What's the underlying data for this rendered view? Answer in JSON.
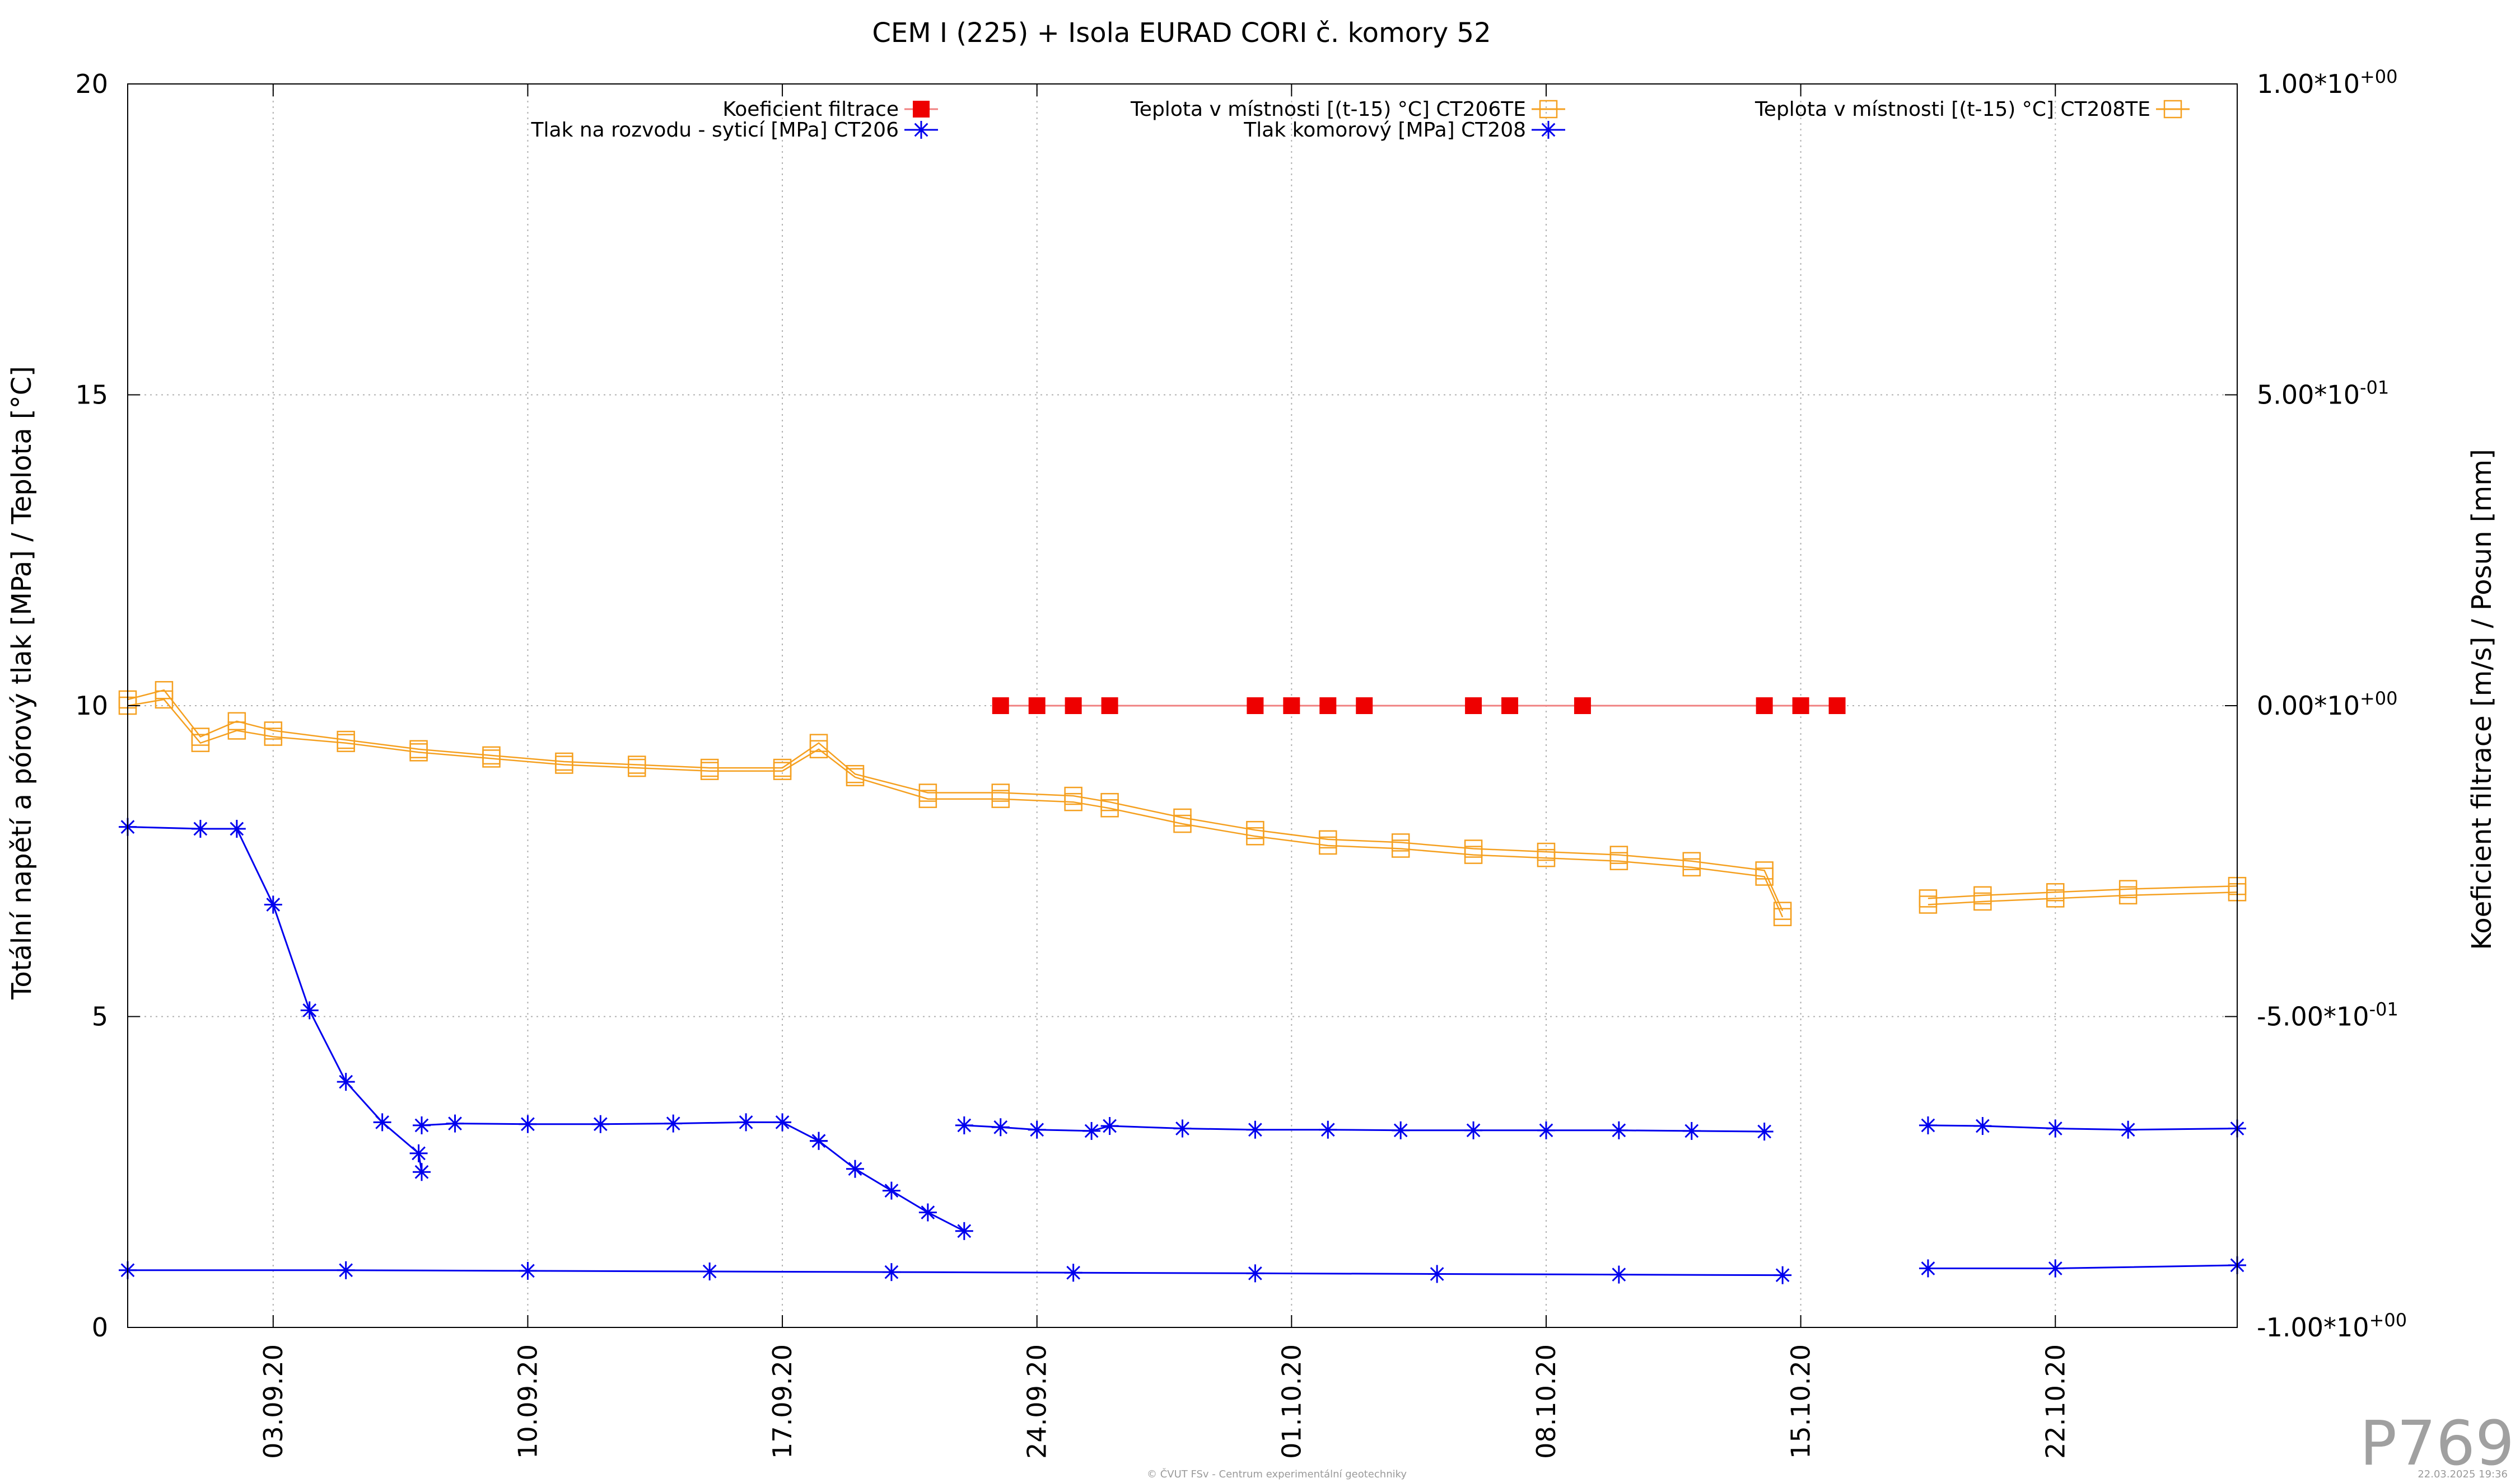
{
  "chart_data": {
    "type": "line",
    "title": "CEM I (225) + Isola EURAD CORI č. komory 52",
    "ylabel_left": "Totální napětí a pórový tlak [MPa] / Teplota [°C]",
    "ylabel_right": "Koeficient filtrace [m/s] / Posun [mm]",
    "ylim_left": [
      0,
      20
    ],
    "yticks_left": [
      "0",
      "5",
      "10",
      "15",
      "20"
    ],
    "ylim_right": [
      -1,
      1
    ],
    "yticks_right": [
      {
        "value": -1,
        "mantissa": "-1.00*10",
        "exp": "+00"
      },
      {
        "value": -0.5,
        "mantissa": "-5.00*10",
        "exp": "-01"
      },
      {
        "value": 0,
        "mantissa": "0.00*10",
        "exp": "+00"
      },
      {
        "value": 0.5,
        "mantissa": "5.00*10",
        "exp": "-01"
      },
      {
        "value": 1,
        "mantissa": "1.00*10",
        "exp": "+00"
      }
    ],
    "x_range": [
      "2020-08-30",
      "2020-10-27"
    ],
    "x_ticks": [
      {
        "date": "2020-09-03",
        "label": "03.09.20"
      },
      {
        "date": "2020-09-10",
        "label": "10.09.20"
      },
      {
        "date": "2020-09-17",
        "label": "17.09.20"
      },
      {
        "date": "2020-09-24",
        "label": "24.09.20"
      },
      {
        "date": "2020-10-01",
        "label": "01.10.20"
      },
      {
        "date": "2020-10-08",
        "label": "08.10.20"
      },
      {
        "date": "2020-10-15",
        "label": "15.10.20"
      },
      {
        "date": "2020-10-22",
        "label": "22.10.20"
      }
    ],
    "grid": true,
    "legend_position": "top",
    "series": [
      {
        "name": "Koeficient filtrace",
        "axis": "right",
        "color": "#ee0000",
        "marker": "square-filled",
        "x": [
          "2020-09-23",
          "2020-09-24",
          "2020-09-25",
          "2020-09-26",
          "2020-09-30",
          "2020-10-01",
          "2020-10-02",
          "2020-10-03",
          "2020-10-06",
          "2020-10-07",
          "2020-10-09",
          "2020-10-14",
          "2020-10-15",
          "2020-10-16"
        ],
        "y": [
          0,
          0,
          0,
          0,
          0,
          0,
          0,
          0,
          0,
          0,
          0,
          0,
          0,
          0
        ]
      },
      {
        "name": "Tlak na rozvodu - syticí [MPa] CT206",
        "axis": "left",
        "color": "#0000ee",
        "marker": "asterisk",
        "segments": [
          {
            "x": [
              "2020-08-30",
              "2020-09-01",
              "2020-09-02",
              "2020-09-03",
              "2020-09-04",
              "2020-09-05",
              "2020-09-06",
              "2020-09-07",
              "2020-09-07T02:00"
            ],
            "y": [
              8.05,
              8.02,
              8.02,
              6.8,
              5.1,
              3.95,
              3.3,
              2.8,
              2.5
            ]
          },
          {
            "x": [
              "2020-09-07T02:00",
              "2020-09-08",
              "2020-09-10",
              "2020-09-12",
              "2020-09-14",
              "2020-09-16",
              "2020-09-17",
              "2020-09-18"
            ],
            "y": [
              3.25,
              3.28,
              3.27,
              3.27,
              3.28,
              3.3,
              3.3,
              3.0
            ]
          },
          {
            "x": [
              "2020-09-18",
              "2020-09-19",
              "2020-09-20",
              "2020-09-21",
              "2020-09-22"
            ],
            "y": [
              3.0,
              2.55,
              2.2,
              1.85,
              1.55
            ]
          },
          {
            "x": [
              "2020-09-22",
              "2020-09-23",
              "2020-09-24",
              "2020-09-25T12:00",
              "2020-09-26",
              "2020-09-28",
              "2020-09-30",
              "2020-10-02",
              "2020-10-04",
              "2020-10-06",
              "2020-10-08",
              "2020-10-10",
              "2020-10-12",
              "2020-10-14"
            ],
            "y": [
              3.25,
              3.22,
              3.18,
              3.16,
              3.24,
              3.2,
              3.18,
              3.18,
              3.17,
              3.17,
              3.17,
              3.17,
              3.16,
              3.15
            ]
          },
          {
            "x": [
              "2020-10-18T12:00",
              "2020-10-20",
              "2020-10-22",
              "2020-10-24",
              "2020-10-27"
            ],
            "y": [
              3.25,
              3.24,
              3.2,
              3.18,
              3.2
            ]
          }
        ]
      },
      {
        "name": "Teplota v místnosti [(t-15) °C] CT206TE",
        "axis": "left",
        "color": "#f5a020",
        "marker": "square-open",
        "segments": [
          {
            "x": [
              "2020-08-30",
              "2020-08-31",
              "2020-09-01",
              "2020-09-02",
              "2020-09-03",
              "2020-09-05",
              "2020-09-07",
              "2020-09-09",
              "2020-09-11",
              "2020-09-13",
              "2020-09-15",
              "2020-09-17",
              "2020-09-18",
              "2020-09-19",
              "2020-09-21",
              "2020-09-23",
              "2020-09-25",
              "2020-09-26",
              "2020-09-28",
              "2020-09-30",
              "2020-10-02",
              "2020-10-04",
              "2020-10-06",
              "2020-10-08",
              "2020-10-10",
              "2020-10-12",
              "2020-10-14",
              "2020-10-14T12:00"
            ],
            "y": [
              10.1,
              10.25,
              9.5,
              9.75,
              9.6,
              9.45,
              9.3,
              9.2,
              9.1,
              9.05,
              9.0,
              9.0,
              9.4,
              8.9,
              8.6,
              8.6,
              8.55,
              8.45,
              8.2,
              8.0,
              7.85,
              7.8,
              7.7,
              7.65,
              7.6,
              7.5,
              7.35,
              6.7
            ]
          },
          {
            "x": [
              "2020-10-18T12:00",
              "2020-10-20",
              "2020-10-22",
              "2020-10-24",
              "2020-10-27"
            ],
            "y": [
              6.9,
              6.95,
              7.0,
              7.05,
              7.1
            ]
          }
        ]
      },
      {
        "name": "Tlak komorový [MPa] CT208",
        "axis": "left",
        "color": "#0000ee",
        "marker": "asterisk",
        "segments": [
          {
            "x": [
              "2020-08-30",
              "2020-09-05",
              "2020-09-10",
              "2020-09-15",
              "2020-09-20",
              "2020-09-25",
              "2020-09-30",
              "2020-10-05",
              "2020-10-10",
              "2020-10-14T12:00"
            ],
            "y": [
              0.92,
              0.92,
              0.91,
              0.9,
              0.89,
              0.88,
              0.87,
              0.86,
              0.85,
              0.84
            ]
          },
          {
            "x": [
              "2020-10-18T12:00",
              "2020-10-22",
              "2020-10-27"
            ],
            "y": [
              0.95,
              0.95,
              1.0
            ]
          }
        ]
      },
      {
        "name": "Teplota v místnosti [(t-15) °C] CT208TE",
        "axis": "left",
        "color": "#f5a020",
        "marker": "square-open",
        "segments": [
          {
            "x": [
              "2020-08-30",
              "2020-08-31",
              "2020-09-01",
              "2020-09-02",
              "2020-09-03",
              "2020-09-05",
              "2020-09-07",
              "2020-09-09",
              "2020-09-11",
              "2020-09-13",
              "2020-09-15",
              "2020-09-17",
              "2020-09-18",
              "2020-09-19",
              "2020-09-21",
              "2020-09-23",
              "2020-09-25",
              "2020-09-26",
              "2020-09-28",
              "2020-09-30",
              "2020-10-02",
              "2020-10-04",
              "2020-10-06",
              "2020-10-08",
              "2020-10-10",
              "2020-10-12",
              "2020-10-14",
              "2020-10-14T12:00"
            ],
            "y": [
              10.0,
              10.1,
              9.4,
              9.6,
              9.5,
              9.4,
              9.25,
              9.15,
              9.05,
              9.0,
              8.95,
              8.95,
              9.3,
              8.85,
              8.5,
              8.5,
              8.45,
              8.35,
              8.1,
              7.9,
              7.75,
              7.7,
              7.6,
              7.55,
              7.5,
              7.4,
              7.25,
              6.6
            ]
          },
          {
            "x": [
              "2020-10-18T12:00",
              "2020-10-20",
              "2020-10-22",
              "2020-10-24",
              "2020-10-27"
            ],
            "y": [
              6.8,
              6.85,
              6.9,
              6.95,
              7.0
            ]
          }
        ]
      }
    ],
    "marker_label": "P769",
    "footer_left": "© ČVUT FSv - Centrum experimentální geotechniky",
    "footer_right": "22.03.2025 19:36"
  }
}
